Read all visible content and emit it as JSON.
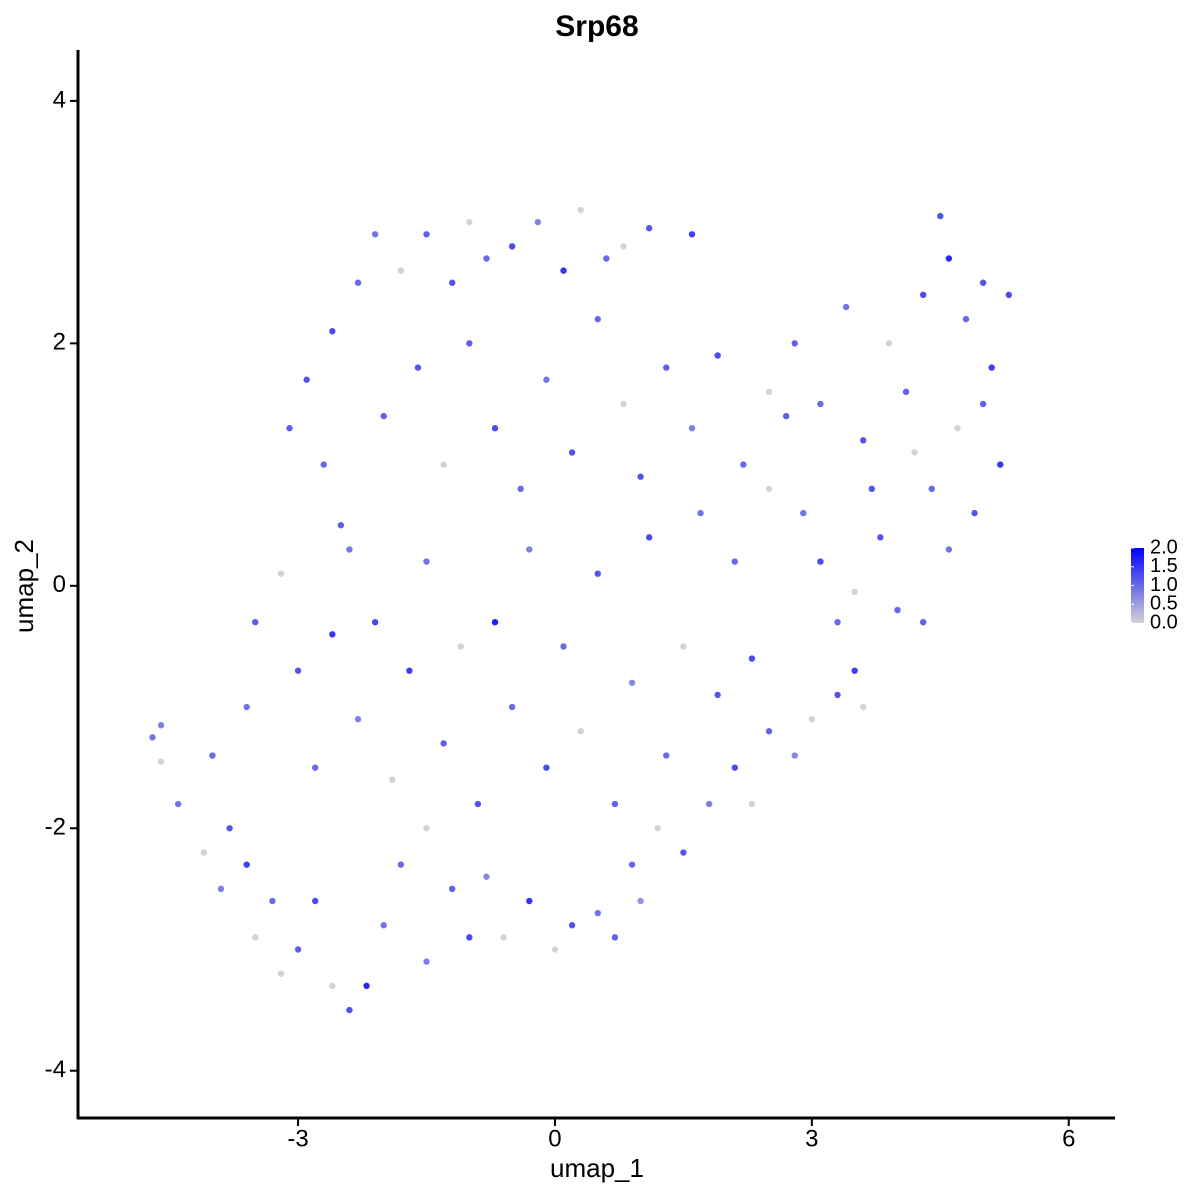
{
  "chart_data": {
    "type": "scatter",
    "title": "Srp68",
    "x_label": "umap_1",
    "y_label": "umap_2",
    "xlim": [
      -5.57,
      6.54
    ],
    "ylim": [
      -4.39,
      4.42
    ],
    "xticks": [
      -3,
      0,
      3,
      6
    ],
    "yticks": [
      -4,
      -2,
      0,
      2,
      4
    ],
    "color_scale": {
      "low": "#d3d3d3",
      "high": "#0000ff",
      "range": [
        0,
        2
      ],
      "ticks": [
        {
          "value": 0,
          "label": "0.0"
        },
        0.5,
        {
          "value": 1,
          "label": "1.0"
        },
        1.5,
        {
          "value": 2,
          "label": "2.0"
        }
      ]
    },
    "x": [
      -4.7,
      -4.6,
      -4.6,
      -4.4,
      -4.1,
      -3.9,
      -3.8,
      -3.6,
      -3.5,
      -3.3,
      -3.2,
      -3.0,
      -2.8,
      -2.6,
      -2.4,
      -2.2,
      -2.0,
      -1.8,
      -1.5,
      -1.5,
      -1.2,
      -1.0,
      -0.8,
      -0.6,
      -0.3,
      0,
      0.2,
      0.5,
      0.7,
      1.0,
      0.9,
      1.2,
      1.5,
      1.8,
      2.1,
      2.3,
      2.5,
      2.8,
      3.0,
      3.3,
      3.5,
      3.6,
      -4.0,
      -3.6,
      -3.5,
      -3.2,
      -3.0,
      -2.8,
      -2.6,
      -2.5,
      -2.3,
      -2.1,
      -1.9,
      -1.7,
      -1.5,
      -1.3,
      -1.1,
      -0.9,
      -0.7,
      -0.5,
      -0.3,
      -0.1,
      0.1,
      0.3,
      0.5,
      0.7,
      0.9,
      1.1,
      1.3,
      1.5,
      1.7,
      1.9,
      2.1,
      2.3,
      2.5,
      2.7,
      2.9,
      3.1,
      3.3,
      3.5,
      3.8,
      4.0,
      4.3,
      4.6,
      4.9,
      5.2,
      -3.1,
      -2.9,
      -2.6,
      -2.3,
      -2.1,
      -1.8,
      -1.5,
      -1.2,
      -1.0,
      -0.8,
      -0.5,
      -0.2,
      0.1,
      0.3,
      0.6,
      0.8,
      1.1,
      1.6,
      -2.7,
      -2.4,
      -2.0,
      -1.6,
      -1.3,
      -1.0,
      -0.7,
      -0.4,
      -0.1,
      0.2,
      0.5,
      0.8,
      1.0,
      1.3,
      1.6,
      1.9,
      2.2,
      2.5,
      2.8,
      3.1,
      3.4,
      3.6,
      3.9,
      4.1,
      4.3,
      4.5,
      4.6,
      4.8,
      5.0,
      5.1,
      5.3,
      4.4,
      4.7,
      5.0,
      4.2,
      3.7
    ],
    "values": [
      -1.25,
      -1.15,
      -1.45,
      -1.8,
      -2.2,
      -2.5,
      -2.0,
      -2.3,
      -2.9,
      -2.6,
      -3.2,
      -3.0,
      -2.6,
      -3.3,
      -3.5,
      -3.3,
      -2.8,
      -2.3,
      -3.1,
      -2.0,
      -2.5,
      -2.9,
      -2.4,
      -2.9,
      -2.6,
      -3.0,
      -2.8,
      -2.7,
      -2.9,
      -2.6,
      -2.3,
      -2.0,
      -2.2,
      -1.8,
      -1.5,
      -1.8,
      -1.2,
      -1.4,
      -1.1,
      -0.9,
      -0.7,
      -1.0,
      -1.4,
      -1.0,
      -0.3,
      0.1,
      -0.7,
      -1.5,
      -0.4,
      0.5,
      -1.1,
      -0.3,
      -1.6,
      -0.7,
      0.2,
      -1.3,
      -0.5,
      -1.8,
      -0.3,
      -1.0,
      0.3,
      -1.5,
      -0.5,
      -1.2,
      0.1,
      -1.8,
      -0.8,
      0.4,
      -1.4,
      -0.5,
      0.6,
      -0.9,
      0.2,
      -0.6,
      0.8,
      1.4,
      0.6,
      0.2,
      -0.3,
      -0.05,
      0.4,
      -0.2,
      -0.3,
      0.3,
      0.6,
      1.0,
      1.3,
      1.7,
      2.1,
      2.5,
      2.9,
      2.6,
      2.9,
      2.5,
      3.0,
      2.7,
      2.8,
      3.0,
      2.6,
      3.1,
      2.7,
      2.8,
      2.95,
      2.9,
      1.0,
      0.3,
      1.4,
      1.8,
      1.0,
      2.0,
      1.3,
      0.8,
      1.7,
      1.1,
      2.2,
      1.5,
      0.9,
      1.8,
      1.3,
      1.9,
      1.0,
      1.6,
      2.0,
      1.5,
      2.3,
      1.2,
      2.0,
      1.6,
      2.4,
      3.05,
      2.7,
      2.2,
      2.5,
      1.8,
      2.4,
      0.8,
      1.3,
      1.5,
      1.1,
      0.8
    ],
    "expression": [
      0.9,
      0.8,
      0,
      0.9,
      0,
      0.8,
      1.2,
      1.4,
      0,
      1.0,
      0,
      1.1,
      1.3,
      0,
      1.2,
      1.6,
      0.9,
      1.0,
      0.8,
      0,
      1.1,
      1.3,
      0.7,
      0,
      1.5,
      0,
      1.2,
      0.9,
      1.1,
      0.6,
      1.0,
      0,
      1.2,
      0.8,
      1.3,
      0,
      1.1,
      0.7,
      0,
      1.2,
      1.4,
      0,
      1.0,
      0.9,
      1.1,
      0,
      1.2,
      1.0,
      1.5,
      1.1,
      0.8,
      1.3,
      0,
      1.4,
      0.9,
      1.1,
      0,
      1.2,
      1.7,
      1.0,
      0.8,
      1.3,
      1.0,
      0,
      1.2,
      1.1,
      0.7,
      1.3,
      1.0,
      0,
      0.9,
      1.2,
      1.0,
      1.3,
      0,
      1.1,
      0.9,
      1.3,
      1.0,
      0,
      1.2,
      1.0,
      1.1,
      0.9,
      1.2,
      1.5,
      1.1,
      1.2,
      1.3,
      1.0,
      0.9,
      0,
      1.1,
      1.2,
      0,
      1.0,
      1.3,
      0.8,
      1.5,
      0,
      1.0,
      0,
      1.2,
      1.4,
      1.0,
      0.9,
      1.1,
      1.2,
      0,
      1.1,
      1.3,
      1.0,
      0.9,
      1.2,
      1.0,
      0,
      1.2,
      1.1,
      0.8,
      1.3,
      1.0,
      0,
      1.1,
      1.0,
      0.9,
      1.2,
      0,
      1.1,
      1.3,
      1.2,
      1.6,
      1.0,
      1.2,
      1.4,
      1.3,
      1.0,
      0,
      1.1,
      0,
      1.2
    ]
  }
}
